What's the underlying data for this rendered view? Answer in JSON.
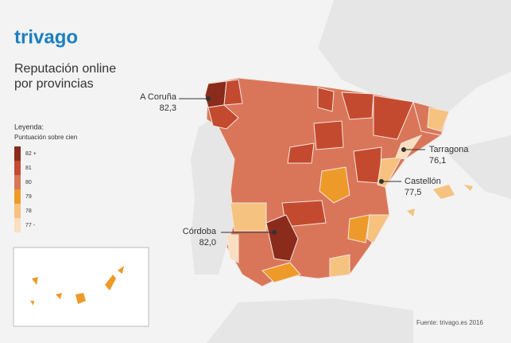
{
  "logo": "trivago",
  "title": [
    "Reputación online",
    "por provincias"
  ],
  "legend": {
    "title": "Leyenda:",
    "subtitle": "Puntuación sobre cien",
    "items": [
      {
        "label": "82 +",
        "color": "#8a2b1c"
      },
      {
        "label": "81",
        "color": "#c44a2f"
      },
      {
        "label": "80",
        "color": "#d9765a"
      },
      {
        "label": "79",
        "color": "#ee9a2a"
      },
      {
        "label": "78",
        "color": "#f6c27f"
      },
      {
        "label": "77 -",
        "color": "#f9dfbf"
      }
    ]
  },
  "annotations": [
    {
      "name": "A Coruña",
      "value": "82,3"
    },
    {
      "name": "Tarragona",
      "value": "76,1"
    },
    {
      "name": "Castellón",
      "value": "77,5"
    },
    {
      "name": "Córdoba",
      "value": "82,0"
    }
  ],
  "source": "Fuente: trivago.es 2016"
}
